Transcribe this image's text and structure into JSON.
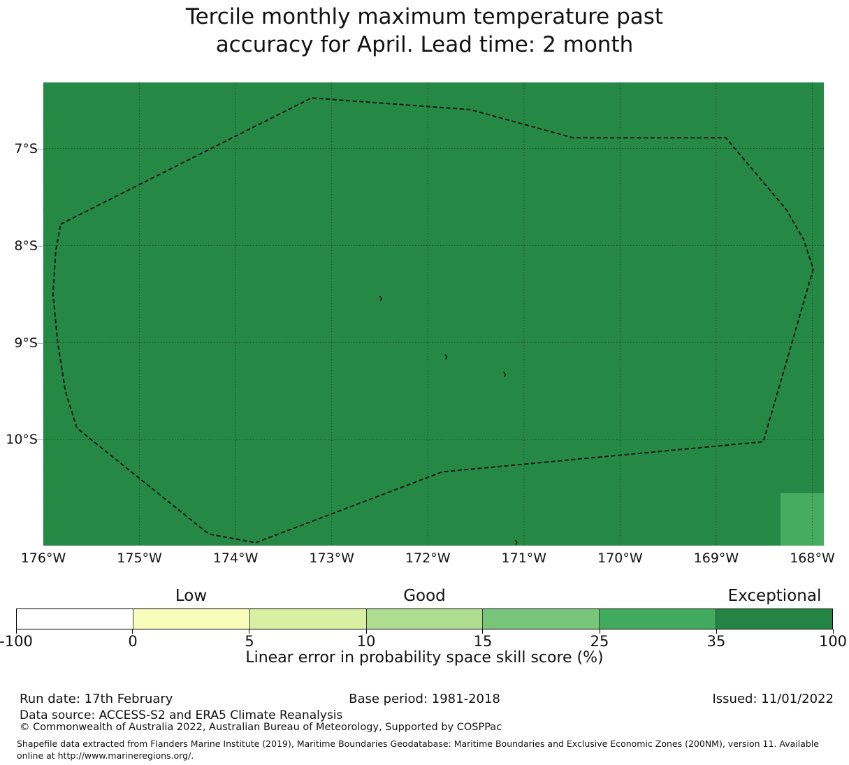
{
  "title": {
    "line1": "Tercile monthly maximum temperature past",
    "line2": "accuracy for April. Lead time: 2 month"
  },
  "chart_data": {
    "type": "map",
    "grid": true,
    "lon_axis": {
      "tick_values": [
        176,
        175,
        174,
        173,
        172,
        171,
        170,
        169,
        168
      ],
      "tick_labels": [
        "176°W",
        "175°W",
        "174°W",
        "173°W",
        "172°W",
        "171°W",
        "170°W",
        "169°W",
        "168°W"
      ],
      "range_w": [
        176.0,
        167.88
      ]
    },
    "lat_axis": {
      "tick_values": [
        7,
        8,
        9,
        10
      ],
      "tick_labels": [
        "7°S",
        "8°S",
        "9°S",
        "10°S"
      ],
      "range_s": [
        6.32,
        11.09
      ]
    },
    "base_fill": {
      "skill_bin": "35 to 100",
      "color": "#268845"
    },
    "highlight_cell": {
      "skill_bin": "25 to 35",
      "color": "#45ac60",
      "lon_w": [
        168.33,
        167.88
      ],
      "lat_s": [
        10.55,
        11.09
      ]
    },
    "eez_boundary": {
      "style": "dashed",
      "color": "#0d0d0d",
      "vertices_lonw_lats": [
        [
          175.82,
          7.78
        ],
        [
          173.21,
          6.48
        ],
        [
          171.56,
          6.6
        ],
        [
          170.49,
          6.89
        ],
        [
          168.9,
          6.89
        ],
        [
          168.27,
          7.63
        ],
        [
          168.09,
          7.94
        ],
        [
          167.99,
          8.24
        ],
        [
          168.51,
          10.02
        ],
        [
          171.85,
          10.33
        ],
        [
          173.79,
          11.06
        ],
        [
          174.28,
          10.97
        ],
        [
          175.65,
          9.88
        ],
        [
          175.77,
          9.5
        ],
        [
          175.85,
          9.0
        ],
        [
          175.9,
          8.5
        ],
        [
          175.87,
          8.05
        ]
      ]
    },
    "islands_lonw_lats": [
      [
        172.49,
        8.55
      ],
      [
        171.81,
        9.15
      ],
      [
        171.2,
        9.33
      ],
      [
        171.08,
        11.06
      ]
    ],
    "colorbar": {
      "boundaries": [
        -100,
        0,
        5,
        10,
        15,
        25,
        35,
        100
      ],
      "tick_labels": [
        "-100",
        "0",
        "5",
        "10",
        "15",
        "25",
        "35",
        "100"
      ],
      "segment_colors": [
        "#ffffff",
        "#f7fcb9",
        "#d9f0a3",
        "#addd8e",
        "#78c679",
        "#41ab5d",
        "#238443"
      ],
      "categories": [
        {
          "label": "Low",
          "segment_index": 1
        },
        {
          "label": "Good",
          "segment_index": 3
        },
        {
          "label": "Exceptional",
          "segment_index": 6
        }
      ],
      "xlabel": "Linear error in probability space skill score (%)"
    }
  },
  "footer": {
    "run_date": "Run date: 17th February",
    "base_period": "Base period: 1981-2018",
    "issued": "Issued: 11/01/2022",
    "data_source": "Data source: ACCESS-S2 and ERA5 Climate Reanalysis",
    "copyright": "© Commonwealth of Australia 2022, Australian Bureau of Meteorology, Supported by COSPPac",
    "shapefile_note": "Shapefile data extracted from Flanders Marine Institute (2019), Maritime Boundaries Geodatabase: Maritime Boundaries and Exclusive Economic Zones (200NM), version 11. Available online at http://www.marineregions.org/."
  }
}
